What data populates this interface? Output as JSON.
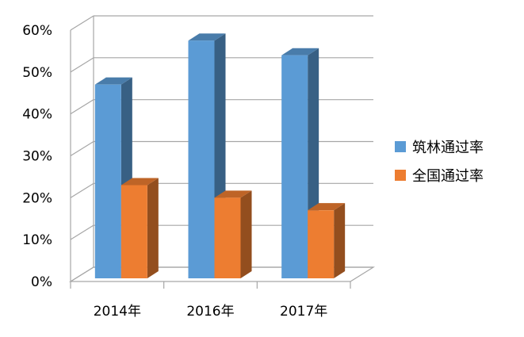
{
  "chart_data": {
    "type": "bar",
    "style": "3d-clustered-column",
    "categories": [
      "2014年",
      "2016年",
      "2017年"
    ],
    "series": [
      {
        "name": "筑林通过率",
        "values": [
          47,
          57.5,
          54
        ],
        "color": "#5B9BD5"
      },
      {
        "name": "全国通过率",
        "values": [
          23,
          20,
          17
        ],
        "color": "#ED7D31"
      }
    ],
    "y_ticks": [
      "0%",
      "10%",
      "20%",
      "30%",
      "40%",
      "50%",
      "60%"
    ],
    "ylim": [
      0,
      60
    ],
    "grid": true,
    "legend": "right"
  }
}
